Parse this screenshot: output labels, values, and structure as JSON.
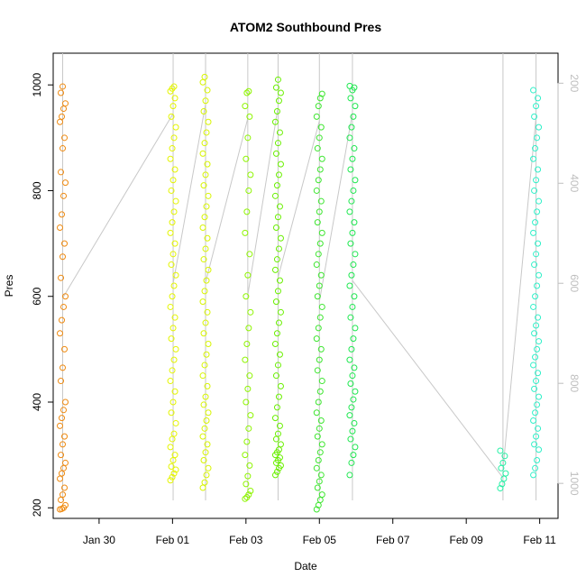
{
  "colors": {
    "axis": "#000000",
    "right_axis": "#bebebe",
    "connector": "#c8c8c8"
  },
  "chart_data": {
    "type": "scatter",
    "title": "ATOM2 Southbound Pres",
    "xlabel": "Date",
    "ylabel": "Pres",
    "x_ticks": [
      "Jan 30",
      "Feb 01",
      "Feb 03",
      "Feb 05",
      "Feb 07",
      "Feb 09",
      "Feb 11"
    ],
    "y_ticks": [
      200,
      400,
      600,
      800,
      1000
    ],
    "right_ticks": [
      200,
      400,
      600,
      800,
      1000
    ],
    "xlim": [
      "2023-01-28T18:00",
      "2023-02-11T12:00"
    ],
    "ylim": [
      180,
      1060
    ],
    "right_ylim": [
      1070,
      140
    ],
    "marker": "open-circle",
    "grid": false,
    "legend": "none",
    "profiles": [
      {
        "date": "2023-01-29T00:12",
        "color": "#ef8a10",
        "values": [
          197,
          198,
          200,
          205,
          215,
          225,
          238,
          255,
          265,
          275,
          285,
          300,
          320,
          335,
          355,
          370,
          385,
          400,
          440,
          465,
          500,
          530,
          555,
          580,
          600,
          635,
          675,
          700,
          730,
          755,
          790,
          815,
          835,
          880,
          900,
          930,
          940,
          955,
          965,
          985,
          997
        ]
      },
      {
        "date": "2023-02-01T00:24",
        "color": "#e4f500",
        "values": [
          252,
          258,
          265,
          272,
          278,
          290,
          300,
          315,
          330,
          340,
          360,
          380,
          400,
          420,
          440,
          460,
          480,
          500,
          520,
          540,
          560,
          580,
          600,
          620,
          640,
          660,
          680,
          700,
          720,
          740,
          760,
          780,
          800,
          820,
          840,
          860,
          880,
          900,
          920,
          940,
          960,
          975,
          988,
          993,
          997
        ]
      },
      {
        "date": "2023-02-01T21:36",
        "color": "#d8f500",
        "values": [
          238,
          248,
          262,
          275,
          290,
          305,
          320,
          335,
          350,
          365,
          380,
          395,
          410,
          430,
          450,
          470,
          490,
          510,
          530,
          550,
          570,
          590,
          610,
          630,
          650,
          670,
          690,
          710,
          730,
          750,
          770,
          790,
          810,
          830,
          850,
          870,
          890,
          910,
          930,
          950,
          970,
          990,
          1005,
          1015
        ]
      },
      {
        "date": "2023-02-03T01:12",
        "color": "#8ef500",
        "values": [
          217,
          220,
          225,
          232,
          245,
          260,
          280,
          300,
          325,
          350,
          375,
          400,
          425,
          450,
          480,
          510,
          540,
          570,
          600,
          640,
          680,
          720,
          760,
          800,
          830,
          860,
          900,
          940,
          960,
          985,
          988
        ]
      },
      {
        "date": "2023-02-03T21:00",
        "color": "#6af000",
        "values": [
          262,
          268,
          275,
          280,
          285,
          290,
          295,
          300,
          305,
          310,
          320,
          330,
          340,
          355,
          370,
          390,
          410,
          430,
          450,
          470,
          490,
          510,
          530,
          550,
          570,
          590,
          610,
          630,
          650,
          670,
          690,
          710,
          730,
          750,
          770,
          790,
          810,
          830,
          850,
          870,
          890,
          910,
          930,
          950,
          970,
          985,
          995,
          1010
        ]
      },
      {
        "date": "2023-02-05T00:00",
        "color": "#3ee630",
        "values": [
          197,
          205,
          215,
          225,
          238,
          250,
          262,
          275,
          290,
          305,
          320,
          335,
          350,
          365,
          380,
          400,
          420,
          440,
          460,
          480,
          500,
          520,
          540,
          560,
          580,
          600,
          620,
          640,
          660,
          680,
          700,
          720,
          740,
          760,
          780,
          800,
          820,
          840,
          860,
          880,
          900,
          920,
          940,
          960,
          975,
          983
        ]
      },
      {
        "date": "2023-02-05T21:36",
        "color": "#1ee850",
        "values": [
          262,
          285,
          300,
          315,
          330,
          345,
          360,
          375,
          390,
          405,
          420,
          435,
          450,
          465,
          480,
          500,
          520,
          540,
          560,
          580,
          600,
          620,
          640,
          660,
          680,
          700,
          720,
          740,
          760,
          780,
          800,
          820,
          840,
          860,
          880,
          900,
          920,
          940,
          960,
          975,
          990,
          995,
          998
        ]
      },
      {
        "date": "2023-02-10T00:00",
        "color": "#22f0a4",
        "values": [
          237,
          245,
          255,
          265,
          275,
          285,
          298,
          308
        ]
      },
      {
        "date": "2023-02-10T21:36",
        "color": "#2ff0c8",
        "values": [
          262,
          275,
          290,
          310,
          320,
          335,
          350,
          365,
          380,
          395,
          410,
          425,
          440,
          455,
          470,
          485,
          500,
          515,
          530,
          545,
          560,
          580,
          600,
          620,
          640,
          660,
          680,
          700,
          720,
          740,
          760,
          780,
          800,
          820,
          840,
          860,
          880,
          900,
          920,
          940,
          960,
          975,
          990
        ]
      }
    ]
  }
}
